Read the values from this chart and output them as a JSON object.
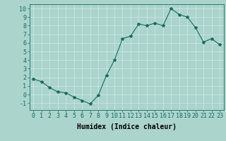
{
  "x": [
    0,
    1,
    2,
    3,
    4,
    5,
    6,
    7,
    8,
    9,
    10,
    11,
    12,
    13,
    14,
    15,
    16,
    17,
    18,
    19,
    20,
    21,
    22,
    23
  ],
  "y": [
    1.8,
    1.5,
    0.8,
    0.3,
    0.2,
    -0.3,
    -0.7,
    -1.1,
    -0.1,
    2.2,
    4.0,
    6.5,
    6.8,
    8.2,
    8.0,
    8.3,
    8.0,
    10.0,
    9.3,
    9.0,
    7.8,
    6.1,
    6.5,
    5.8
  ],
  "line_color": "#1a6b5e",
  "marker": "*",
  "marker_size": 3,
  "bg_color": "#aad4cc",
  "grid_color": "#c8e8e0",
  "xlabel": "Humidex (Indice chaleur)",
  "xlim": [
    -0.5,
    23.5
  ],
  "ylim": [
    -1.8,
    10.5
  ],
  "yticks": [
    -1,
    0,
    1,
    2,
    3,
    4,
    5,
    6,
    7,
    8,
    9,
    10
  ],
  "xticks": [
    0,
    1,
    2,
    3,
    4,
    5,
    6,
    7,
    8,
    9,
    10,
    11,
    12,
    13,
    14,
    15,
    16,
    17,
    18,
    19,
    20,
    21,
    22,
    23
  ],
  "xlabel_fontsize": 7,
  "tick_fontsize": 6
}
